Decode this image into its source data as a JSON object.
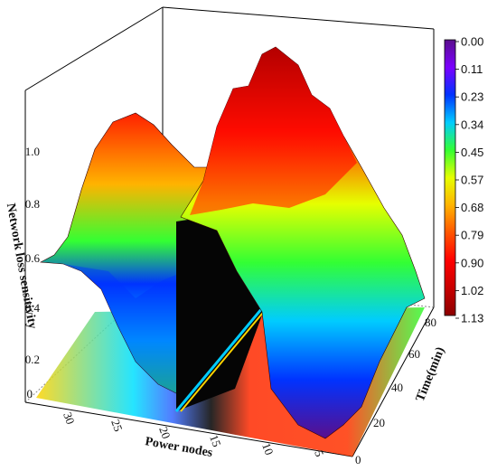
{
  "chart_data": {
    "type": "surface3d",
    "x_label": "Power nodes",
    "y_label": "Time(min)",
    "z_label": "Network loss sensitivity",
    "x_ticks": [
      "30",
      "25",
      "20",
      "15",
      "10",
      "5"
    ],
    "y_ticks": [
      "0",
      "20",
      "40",
      "60",
      "80"
    ],
    "z_ticks": [
      "0",
      "0.2",
      "0.4",
      "0.6",
      "0.8",
      "1.0"
    ],
    "x_range": [
      33,
      1
    ],
    "y_range": [
      0,
      96
    ],
    "z_range": [
      0,
      1.13
    ],
    "colorbar_ticks": [
      "0.00",
      "0.11",
      "0.23",
      "0.34",
      "0.45",
      "0.57",
      "0.68",
      "0.79",
      "0.90",
      "1.02",
      "1.13"
    ],
    "colorbar_colors": [
      "#5a0f8c",
      "#7b00ff",
      "#0033ff",
      "#00ccff",
      "#33ff33",
      "#e6ff00",
      "#ffb300",
      "#ff5500",
      "#ff0000",
      "#c80000",
      "#8b0000"
    ],
    "surface_peaks": [
      {
        "node": 29,
        "peak": 0.95
      },
      {
        "node": 12,
        "peak": 1.13
      }
    ],
    "zero_band_nodes": [
      20,
      18
    ]
  }
}
